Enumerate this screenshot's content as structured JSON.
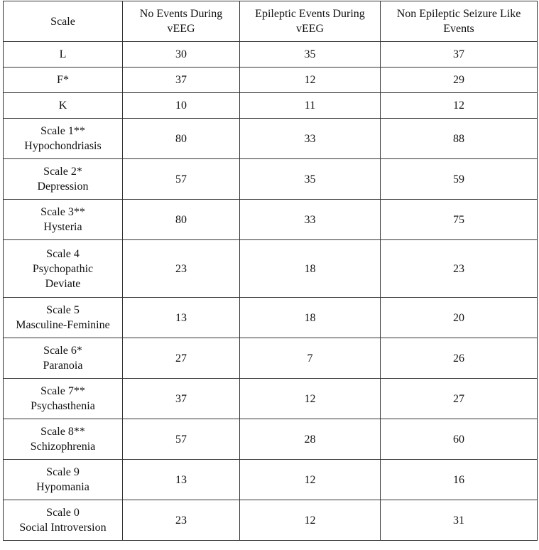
{
  "table": {
    "header": [
      [
        "Scale"
      ],
      [
        "No Events During",
        "vEEG"
      ],
      [
        "Epileptic Events During",
        "vEEG"
      ],
      [
        "Non Epileptic Seizure Like",
        "Events"
      ]
    ],
    "rows": [
      [
        [
          "L"
        ],
        30,
        35,
        37
      ],
      [
        [
          "F*"
        ],
        37,
        12,
        29
      ],
      [
        [
          "K"
        ],
        10,
        11,
        12
      ],
      [
        [
          "Scale 1**",
          "Hypochondriasis"
        ],
        80,
        33,
        88
      ],
      [
        [
          "Scale 2*",
          "Depression"
        ],
        57,
        35,
        59
      ],
      [
        [
          "Scale 3**",
          "Hysteria"
        ],
        80,
        33,
        75
      ],
      [
        [
          "Scale 4",
          "Psychopathic",
          "Deviate"
        ],
        23,
        18,
        23
      ],
      [
        [
          "Scale 5",
          "Masculine-Feminine"
        ],
        13,
        18,
        20
      ],
      [
        [
          "Scale 6*",
          "Paranoia"
        ],
        27,
        7,
        26
      ],
      [
        [
          "Scale 7**",
          "Psychasthenia"
        ],
        37,
        12,
        27
      ],
      [
        [
          "Scale 8**",
          "Schizophrenia"
        ],
        57,
        28,
        60
      ],
      [
        [
          "Scale 9",
          "Hypomania"
        ],
        13,
        12,
        16
      ],
      [
        [
          "Scale 0",
          "Social Introversion"
        ],
        23,
        12,
        31
      ]
    ]
  }
}
